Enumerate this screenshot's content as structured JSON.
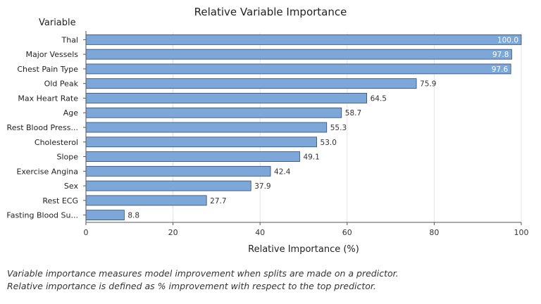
{
  "chart_data": {
    "type": "bar",
    "orientation": "horizontal",
    "title": "Relative Variable Importance",
    "ylabel": "Variable",
    "xlabel": "Relative Importance (%)",
    "xlim": [
      0,
      100
    ],
    "xticks": [
      0,
      20,
      40,
      60,
      80,
      100
    ],
    "grid": true,
    "categories": [
      "Thal",
      "Major Vessels",
      "Chest Pain Type",
      "Old Peak",
      "Max Heart Rate",
      "Age",
      "Rest Blood Press...",
      "Cholesterol",
      "Slope",
      "Exercise Angina",
      "Sex",
      "Rest ECG",
      "Fasting Blood Su..."
    ],
    "values": [
      100.0,
      97.8,
      97.6,
      75.9,
      64.5,
      58.7,
      55.3,
      53.0,
      49.1,
      42.4,
      37.9,
      27.7,
      8.8
    ],
    "value_labels": [
      "100.0",
      "97.8",
      "97.6",
      "75.9",
      "64.5",
      "58.7",
      "55.3",
      "53.0",
      "49.1",
      "42.4",
      "37.9",
      "27.7",
      "8.8"
    ],
    "colors": {
      "bar": "#7da7d9",
      "bar_edge": "#2e4a72",
      "grid": "#e4e4e4",
      "axis": "#555555"
    }
  },
  "footnote": {
    "line1": "Variable importance measures model improvement when splits are made on a predictor.",
    "line2": "Relative importance is defined as % improvement with respect to the top predictor."
  }
}
